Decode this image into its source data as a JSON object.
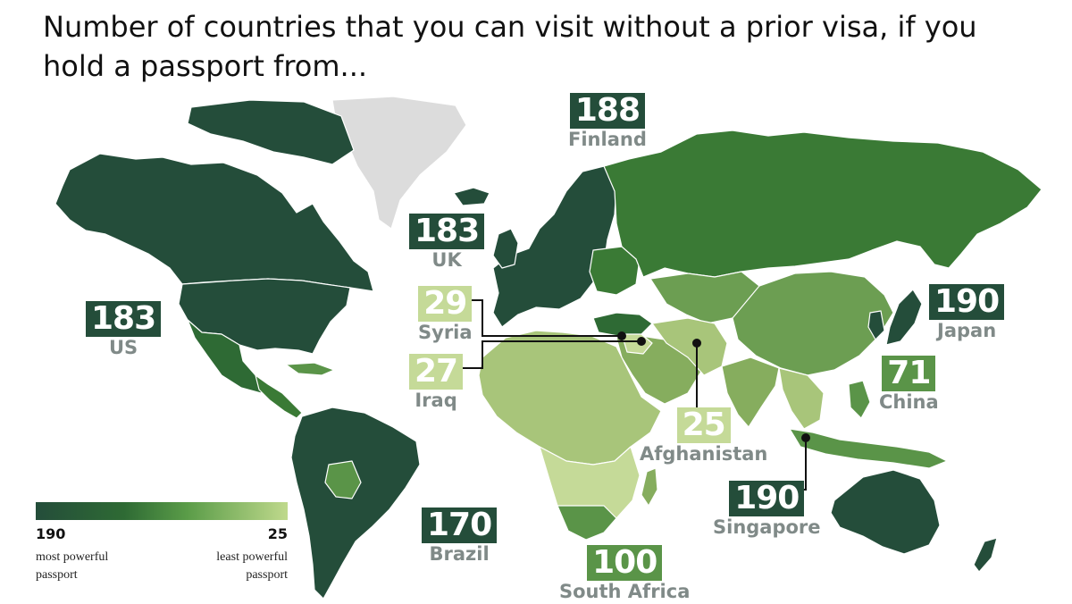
{
  "title": "Number of countries that you can visit without a prior visa, if you hold a passport from...",
  "colors": {
    "background": "#ffffff",
    "land_no_data": "#dcdcdc",
    "darkest": "#244d3a",
    "dark": "#2e5c3b",
    "mid_dark": "#3a7a35",
    "mid": "#5a9448",
    "mid_light": "#86ad5e",
    "light": "#a8c57a",
    "lightest": "#c5da98",
    "name_text": "#808a88"
  },
  "labels": [
    {
      "id": "finland",
      "value": "188",
      "name": "Finland",
      "color": "#244d3a"
    },
    {
      "id": "uk",
      "value": "183",
      "name": "UK",
      "color": "#244d3a"
    },
    {
      "id": "us",
      "value": "183",
      "name": "US",
      "color": "#244d3a"
    },
    {
      "id": "syria",
      "value": "29",
      "name": "Syria",
      "color": "#c5da98"
    },
    {
      "id": "iraq",
      "value": "27",
      "name": "Iraq",
      "color": "#c5da98"
    },
    {
      "id": "afghanistan",
      "value": "25",
      "name": "Afghanistan",
      "color": "#c5da98"
    },
    {
      "id": "japan",
      "value": "190",
      "name": "Japan",
      "color": "#244d3a"
    },
    {
      "id": "china",
      "value": "71",
      "name": "China",
      "color": "#5a9448"
    },
    {
      "id": "singapore",
      "value": "190",
      "name": "Singapore",
      "color": "#244d3a"
    },
    {
      "id": "brazil",
      "value": "170",
      "name": "Brazil",
      "color": "#244d3a"
    },
    {
      "id": "south_africa",
      "value": "100",
      "name": "South Africa",
      "color": "#5a9448"
    }
  ],
  "legend": {
    "min_value": "190",
    "max_value": "25",
    "min_caption_1": "most powerful",
    "min_caption_2": "passport",
    "max_caption_1": "least powerful",
    "max_caption_2": "passport"
  }
}
